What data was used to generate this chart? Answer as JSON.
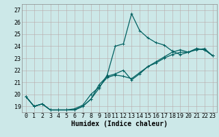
{
  "xlabel": "Humidex (Indice chaleur)",
  "bg_color": "#cce8e8",
  "line_color": "#006060",
  "grid_color_major": "#b8a8a8",
  "grid_color_minor": "#d8c8c8",
  "xlim": [
    -0.5,
    23.5
  ],
  "ylim": [
    18.5,
    27.5
  ],
  "xticks": [
    0,
    1,
    2,
    3,
    4,
    5,
    6,
    7,
    8,
    9,
    10,
    11,
    12,
    13,
    14,
    15,
    16,
    17,
    18,
    19,
    20,
    21,
    22,
    23
  ],
  "yticks": [
    19,
    20,
    21,
    22,
    23,
    24,
    25,
    26,
    27
  ],
  "curve1_x": [
    0,
    1,
    2,
    3,
    4,
    5,
    6,
    7,
    8,
    9,
    10,
    11,
    12,
    13,
    14,
    15,
    16,
    17,
    18,
    19,
    20,
    21,
    22,
    23
  ],
  "curve1_y": [
    19.8,
    19.0,
    19.2,
    18.7,
    18.7,
    18.7,
    18.7,
    19.0,
    19.6,
    20.5,
    21.6,
    24.0,
    24.2,
    26.7,
    25.3,
    24.7,
    24.3,
    24.1,
    23.6,
    23.3,
    23.5,
    23.8,
    23.7,
    23.2
  ],
  "curve2_x": [
    0,
    1,
    2,
    3,
    4,
    5,
    6,
    7,
    8,
    9,
    10,
    11,
    12,
    13,
    14,
    15,
    16,
    17,
    18,
    19,
    20,
    21,
    22,
    23
  ],
  "curve2_y": [
    19.8,
    19.0,
    19.2,
    18.7,
    18.7,
    18.7,
    18.8,
    19.1,
    20.0,
    20.6,
    21.4,
    21.6,
    21.5,
    21.3,
    21.8,
    22.3,
    22.6,
    23.0,
    23.3,
    23.5,
    23.5,
    23.7,
    23.8,
    23.2
  ],
  "curve3_x": [
    0,
    1,
    2,
    3,
    4,
    5,
    6,
    7,
    8,
    9,
    10,
    11,
    12,
    13,
    14,
    15,
    16,
    17,
    18,
    19,
    20,
    21,
    22,
    23
  ],
  "curve3_y": [
    19.8,
    19.0,
    19.2,
    18.7,
    18.7,
    18.7,
    18.7,
    19.0,
    19.6,
    20.8,
    21.5,
    21.7,
    22.0,
    21.2,
    21.7,
    22.3,
    22.7,
    23.1,
    23.5,
    23.7,
    23.5,
    23.8,
    23.7,
    23.2
  ],
  "marker": "+",
  "markersize": 3.5,
  "linewidth": 0.9,
  "xlabel_fontsize": 7,
  "tick_fontsize": 6
}
